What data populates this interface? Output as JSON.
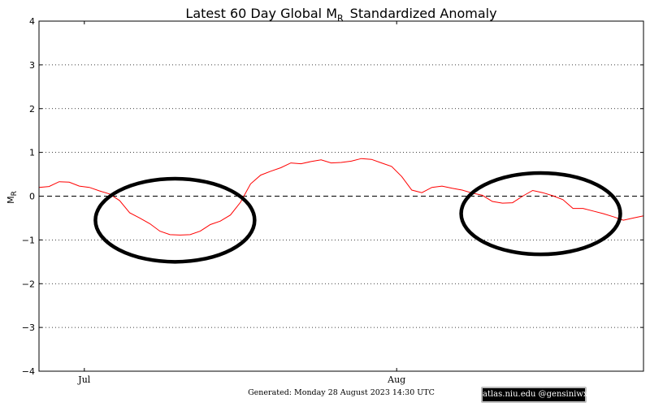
{
  "chart_data": {
    "type": "line",
    "title_main": "Latest 60 Day Global M",
    "title_sub": "R",
    "title_rest": "Standardized Anomaly",
    "ylabel_main": "M",
    "ylabel_sub": "R",
    "ylim": [
      -4,
      4
    ],
    "yticks": [
      -4,
      -3,
      -2,
      -1,
      0,
      1,
      2,
      3,
      4
    ],
    "xlim": [
      0,
      60
    ],
    "xticks": [
      {
        "x": 4.5,
        "label": "Jul"
      },
      {
        "x": 35.5,
        "label": "Aug"
      }
    ],
    "grid": "horizontal-dotted",
    "zero_line": "dashed",
    "series": [
      {
        "color": "#ff0000",
        "x": [
          0,
          1,
          2,
          3,
          4,
          5,
          6,
          7,
          8,
          9,
          10,
          11,
          12,
          13,
          14,
          15,
          16,
          17,
          18,
          19,
          20,
          21,
          22,
          23,
          24,
          25,
          26,
          27,
          28,
          29,
          30,
          31,
          32,
          33,
          34,
          35,
          36,
          37,
          38,
          39,
          40,
          41,
          42,
          43,
          44,
          45,
          46,
          47,
          48,
          49,
          50,
          51,
          52,
          53,
          54,
          55,
          56,
          57,
          58,
          59,
          60
        ],
        "values": [
          0.2,
          0.22,
          0.33,
          0.32,
          0.23,
          0.2,
          0.12,
          0.05,
          -0.1,
          -0.38,
          -0.5,
          -0.63,
          -0.8,
          -0.88,
          -0.89,
          -0.88,
          -0.8,
          -0.65,
          -0.57,
          -0.43,
          -0.14,
          0.28,
          0.48,
          0.57,
          0.65,
          0.76,
          0.74,
          0.79,
          0.83,
          0.76,
          0.77,
          0.8,
          0.86,
          0.84,
          0.76,
          0.68,
          0.45,
          0.14,
          0.08,
          0.2,
          0.23,
          0.18,
          0.14,
          0.07,
          0.02,
          -0.12,
          -0.16,
          -0.15,
          0.0,
          0.13,
          0.08,
          0.01,
          -0.08,
          -0.28,
          -0.28,
          -0.34,
          -0.4,
          -0.47,
          -0.55,
          -0.5,
          -0.45
        ]
      }
    ],
    "annotations": [
      {
        "type": "ellipse",
        "cx": 13.5,
        "cy": -0.55,
        "rx": 7.9,
        "ry": 0.95
      },
      {
        "type": "ellipse",
        "cx": 49.8,
        "cy": -0.4,
        "rx": 7.9,
        "ry": 0.93
      }
    ]
  },
  "footer": {
    "generated": "Generated: Monday  28  August  2023  14:30 UTC",
    "credit": "atlas.niu.edu  @gensiniwx"
  }
}
